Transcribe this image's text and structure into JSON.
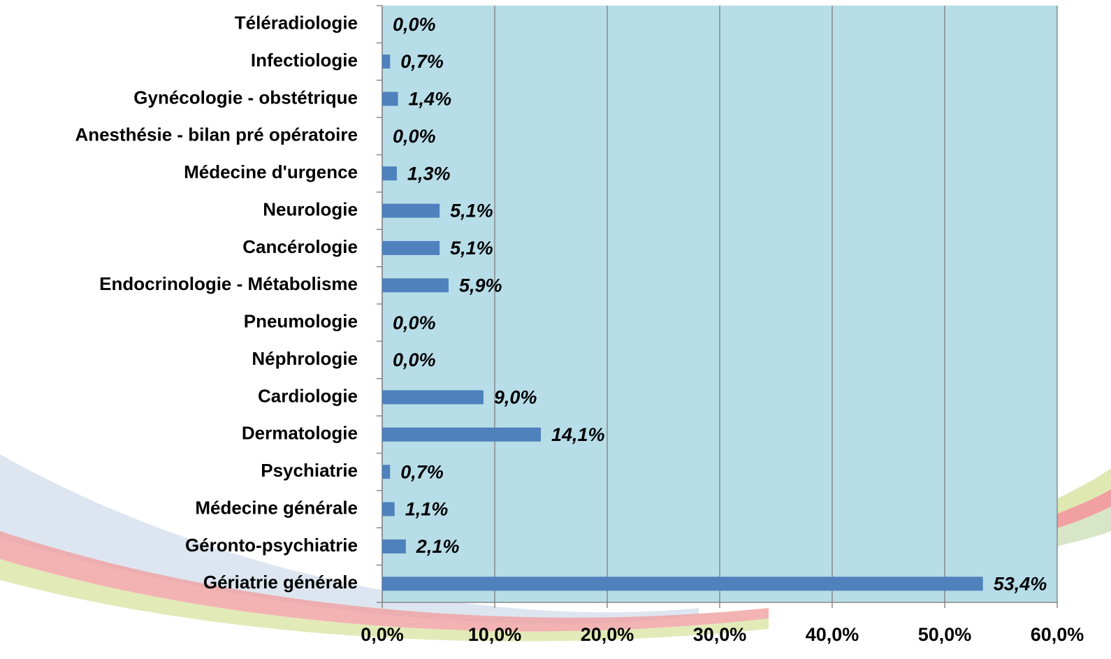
{
  "chart_data": {
    "type": "bar",
    "orientation": "horizontal",
    "categories": [
      "Téléradiologie",
      "Infectiologie",
      "Gynécologie - obstétrique",
      "Anesthésie - bilan pré opératoire",
      "Médecine d'urgence",
      "Neurologie",
      "Cancérologie",
      "Endocrinologie - Métabolisme",
      "Pneumologie",
      "Néphrologie",
      "Cardiologie",
      "Dermatologie",
      "Psychiatrie",
      "Médecine générale",
      "Géronto-psychiatrie",
      "Gériatrie générale"
    ],
    "values": [
      0.0,
      0.7,
      1.4,
      0.0,
      1.3,
      5.1,
      5.1,
      5.9,
      0.0,
      0.0,
      9.0,
      14.1,
      0.7,
      1.1,
      2.1,
      53.4
    ],
    "value_labels": [
      "0,0%",
      "0,7%",
      "1,4%",
      "0,0%",
      "1,3%",
      "5,1%",
      "5,1%",
      "5,9%",
      "0,0%",
      "0,0%",
      "9,0%",
      "14,1%",
      "0,7%",
      "1,1%",
      "2,1%",
      "53,4%"
    ],
    "color": "#4f81bd",
    "plot_background": "#b7dde8",
    "xlim": [
      0,
      60
    ],
    "xticks": [
      {
        "value": 0,
        "label": "0,0%"
      },
      {
        "value": 10,
        "label": "10,0%"
      },
      {
        "value": 20,
        "label": "20,0%"
      },
      {
        "value": 30,
        "label": "30,0%"
      },
      {
        "value": 40,
        "label": "40,0%"
      },
      {
        "value": 50,
        "label": "50,0%"
      },
      {
        "value": 60,
        "label": "60,0%"
      }
    ],
    "grid": true
  }
}
